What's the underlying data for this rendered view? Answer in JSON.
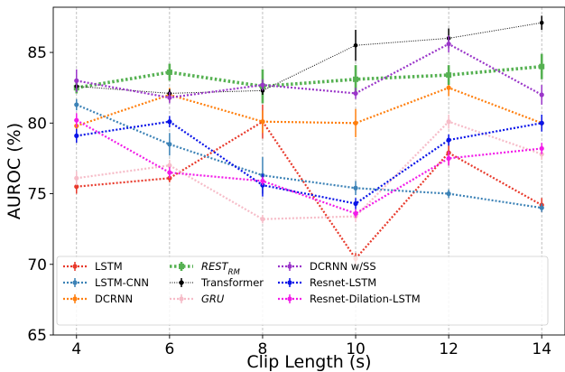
{
  "chart_data": {
    "type": "line",
    "xlabel": "Clip Length (s)",
    "ylabel": "AUROC (%)",
    "x": [
      4,
      6,
      8,
      10,
      12,
      14
    ],
    "xlim": [
      3.5,
      14.5
    ],
    "ylim": [
      65,
      88.2
    ],
    "xticks": [
      4,
      6,
      8,
      10,
      12,
      14
    ],
    "yticks": [
      65,
      70,
      75,
      80,
      85
    ],
    "grid": "vertical dashed at x ticks",
    "legend_position": "bottom",
    "series": [
      {
        "name": "LSTM",
        "color": "#e8392b",
        "style": "dotted",
        "width": 2.2,
        "marker": "circle",
        "values": [
          75.5,
          76.1,
          80.1,
          70.4,
          77.9,
          74.2
        ],
        "errors": [
          0.5,
          0.3,
          1.2,
          0.4,
          0.9,
          0.5
        ]
      },
      {
        "name": "LSTM-CNN",
        "color": "#3c82b6",
        "style": "dotted",
        "width": 2.2,
        "marker": "circle",
        "values": [
          81.3,
          78.5,
          76.3,
          75.4,
          75.0,
          74.0
        ],
        "errors": [
          0.4,
          0.8,
          1.3,
          0.5,
          0.3,
          0.3
        ]
      },
      {
        "name": "DCRNN",
        "color": "#ff7f0e",
        "style": "dotted",
        "width": 2.2,
        "marker": "circle",
        "values": [
          79.8,
          82.0,
          80.1,
          80.0,
          82.5,
          80.0
        ],
        "errors": [
          0.3,
          0.5,
          0.8,
          1.0,
          0.6,
          0.4
        ]
      },
      {
        "name": "REST",
        "name_subscript": "RM",
        "name_italic": true,
        "color": "#56b152",
        "style": "dotted",
        "width": 3.6,
        "marker": "square",
        "values": [
          82.5,
          83.6,
          82.6,
          83.1,
          83.4,
          84.0
        ],
        "errors": [
          0.4,
          0.6,
          1.2,
          1.0,
          0.7,
          0.9
        ]
      },
      {
        "name": "Transformer",
        "color": "#000000",
        "style": "dotted-thin",
        "width": 1.0,
        "marker": "circle",
        "values": [
          82.6,
          82.1,
          82.3,
          85.5,
          86.0,
          87.1
        ],
        "errors": [
          0.3,
          0.3,
          0.3,
          1.1,
          0.7,
          0.5
        ]
      },
      {
        "name": "GRU",
        "name_italic": true,
        "color": "#f6bcc8",
        "style": "dotted",
        "width": 2.2,
        "marker": "circle",
        "values": [
          76.1,
          77.0,
          73.2,
          73.4,
          80.1,
          77.8
        ],
        "errors": [
          0.5,
          0.4,
          0.3,
          0.4,
          0.5,
          0.4
        ]
      },
      {
        "name": "DCRNN w/SS",
        "color": "#9a35c9",
        "style": "dotted",
        "width": 2.2,
        "marker": "circle",
        "values": [
          83.0,
          81.8,
          82.7,
          82.1,
          85.6,
          82.0
        ],
        "errors": [
          0.8,
          0.4,
          0.4,
          0.4,
          0.6,
          0.7
        ]
      },
      {
        "name": "Resnet-LSTM",
        "color": "#0a14e8",
        "style": "dotted",
        "width": 2.2,
        "marker": "circle",
        "values": [
          79.1,
          80.1,
          75.6,
          74.3,
          78.8,
          80.0
        ],
        "errors": [
          0.5,
          0.4,
          0.8,
          0.4,
          0.4,
          0.6
        ]
      },
      {
        "name": "Resnet-Dilation-LSTM",
        "color": "#f21ae8",
        "style": "dotted",
        "width": 2.2,
        "marker": "circle",
        "values": [
          80.2,
          76.5,
          75.9,
          73.6,
          77.5,
          78.2
        ],
        "errors": [
          0.5,
          0.4,
          0.3,
          0.3,
          0.5,
          0.4
        ]
      }
    ]
  }
}
